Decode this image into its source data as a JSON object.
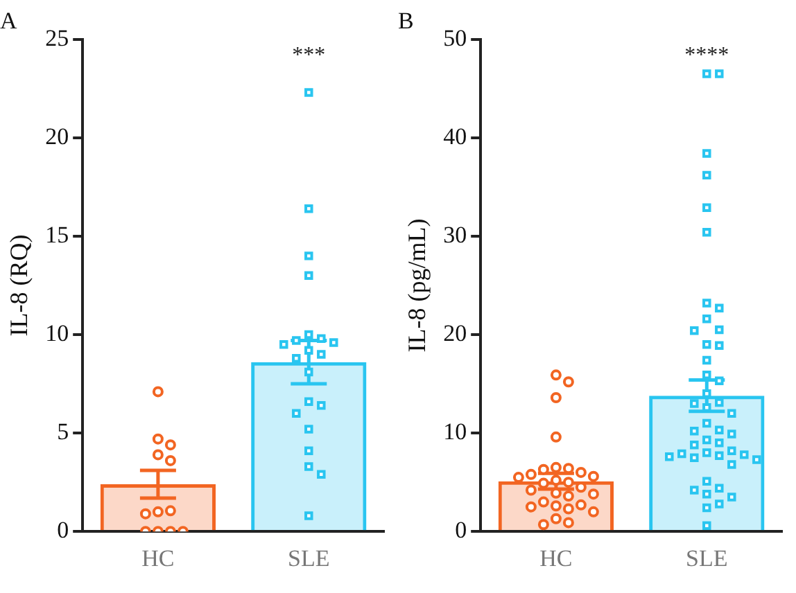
{
  "chart_data": [
    {
      "type": "bar",
      "title": "A",
      "ylabel": "IL-8 (RQ)",
      "categories": [
        "HC",
        "SLE"
      ],
      "ylim": [
        0,
        25
      ],
      "yticks": [
        0,
        5,
        10,
        15,
        20,
        25
      ],
      "grid": false,
      "legend": false,
      "annotations": [
        "***"
      ],
      "series": [
        {
          "colors": [
            "#f26522",
            "#29c5f0"
          ],
          "values": [
            2.4,
            8.6
          ],
          "errors": [
            0.7,
            1.1
          ]
        },
        {
          "type": "scatter",
          "marker": "circle",
          "color": "#f26522",
          "x": [
            "HC",
            "HC",
            "HC",
            "HC",
            "HC",
            "HC",
            "HC",
            "HC",
            "HC",
            "HC",
            "HC",
            "HC"
          ],
          "values": [
            7.1,
            4.7,
            4.4,
            3.9,
            3.6,
            1.0,
            1.05,
            0.9,
            0,
            0,
            0,
            0
          ]
        },
        {
          "type": "scatter",
          "marker": "square",
          "color": "#29c5f0",
          "x": [
            "SLE",
            "SLE",
            "SLE",
            "SLE",
            "SLE",
            "SLE",
            "SLE",
            "SLE",
            "SLE",
            "SLE",
            "SLE",
            "SLE",
            "SLE",
            "SLE",
            "SLE",
            "SLE",
            "SLE",
            "SLE",
            "SLE",
            "SLE",
            "SLE"
          ],
          "values": [
            22.3,
            16.4,
            14.0,
            13.0,
            10.0,
            9.8,
            9.7,
            9.6,
            9.5,
            9.2,
            9.0,
            8.8,
            8.1,
            6.6,
            6.4,
            6.0,
            5.2,
            4.1,
            3.3,
            2.9,
            0.8
          ]
        }
      ]
    },
    {
      "type": "bar",
      "title": "B",
      "ylabel": "IL-8 (pg/mL)",
      "categories": [
        "HC",
        "SLE"
      ],
      "ylim": [
        0,
        50
      ],
      "yticks": [
        0,
        10,
        20,
        30,
        40,
        50
      ],
      "grid": false,
      "legend": false,
      "annotations": [
        "****"
      ],
      "series": [
        {
          "colors": [
            "#f26522",
            "#29c5f0"
          ],
          "values": [
            5.1,
            13.8
          ],
          "errors": [
            0.8,
            1.6
          ]
        },
        {
          "type": "scatter",
          "marker": "circle",
          "color": "#f26522",
          "x": [
            "HC",
            "HC",
            "HC",
            "HC",
            "HC",
            "HC",
            "HC",
            "HC",
            "HC",
            "HC",
            "HC",
            "HC",
            "HC",
            "HC",
            "HC",
            "HC",
            "HC",
            "HC",
            "HC",
            "HC",
            "HC",
            "HC",
            "HC",
            "HC",
            "HC",
            "HC",
            "HC",
            "HC"
          ],
          "values": [
            15.9,
            15.2,
            13.6,
            9.6,
            6.5,
            6.4,
            6.3,
            6.0,
            5.8,
            5.6,
            5.5,
            5.2,
            5.0,
            4.9,
            4.5,
            4.2,
            3.9,
            3.8,
            3.6,
            3.0,
            2.7,
            2.6,
            2.5,
            2.3,
            2.0,
            1.3,
            0.9,
            0.7
          ]
        },
        {
          "type": "scatter",
          "marker": "square",
          "color": "#29c5f0",
          "x": [
            "SLE",
            "SLE",
            "SLE",
            "SLE",
            "SLE",
            "SLE",
            "SLE",
            "SLE",
            "SLE",
            "SLE",
            "SLE",
            "SLE",
            "SLE",
            "SLE",
            "SLE",
            "SLE",
            "SLE",
            "SLE",
            "SLE",
            "SLE",
            "SLE",
            "SLE",
            "SLE",
            "SLE",
            "SLE",
            "SLE",
            "SLE",
            "SLE",
            "SLE",
            "SLE",
            "SLE",
            "SLE",
            "SLE",
            "SLE",
            "SLE",
            "SLE",
            "SLE",
            "SLE",
            "SLE",
            "SLE",
            "SLE",
            "SLE",
            "SLE",
            "SLE",
            "SLE"
          ],
          "values": [
            46.5,
            46.5,
            38.4,
            36.2,
            32.9,
            30.4,
            23.2,
            22.7,
            21.6,
            20.5,
            20.4,
            19.0,
            18.9,
            17.4,
            15.9,
            15.3,
            14.0,
            13.1,
            13.0,
            12.6,
            12.0,
            11.0,
            10.3,
            10.2,
            9.9,
            9.3,
            9.0,
            8.8,
            8.2,
            8.0,
            7.9,
            7.8,
            7.7,
            7.6,
            7.5,
            7.3,
            6.8,
            5.1,
            4.4,
            4.2,
            3.8,
            3.5,
            2.8,
            2.4,
            0.6
          ]
        }
      ]
    }
  ]
}
